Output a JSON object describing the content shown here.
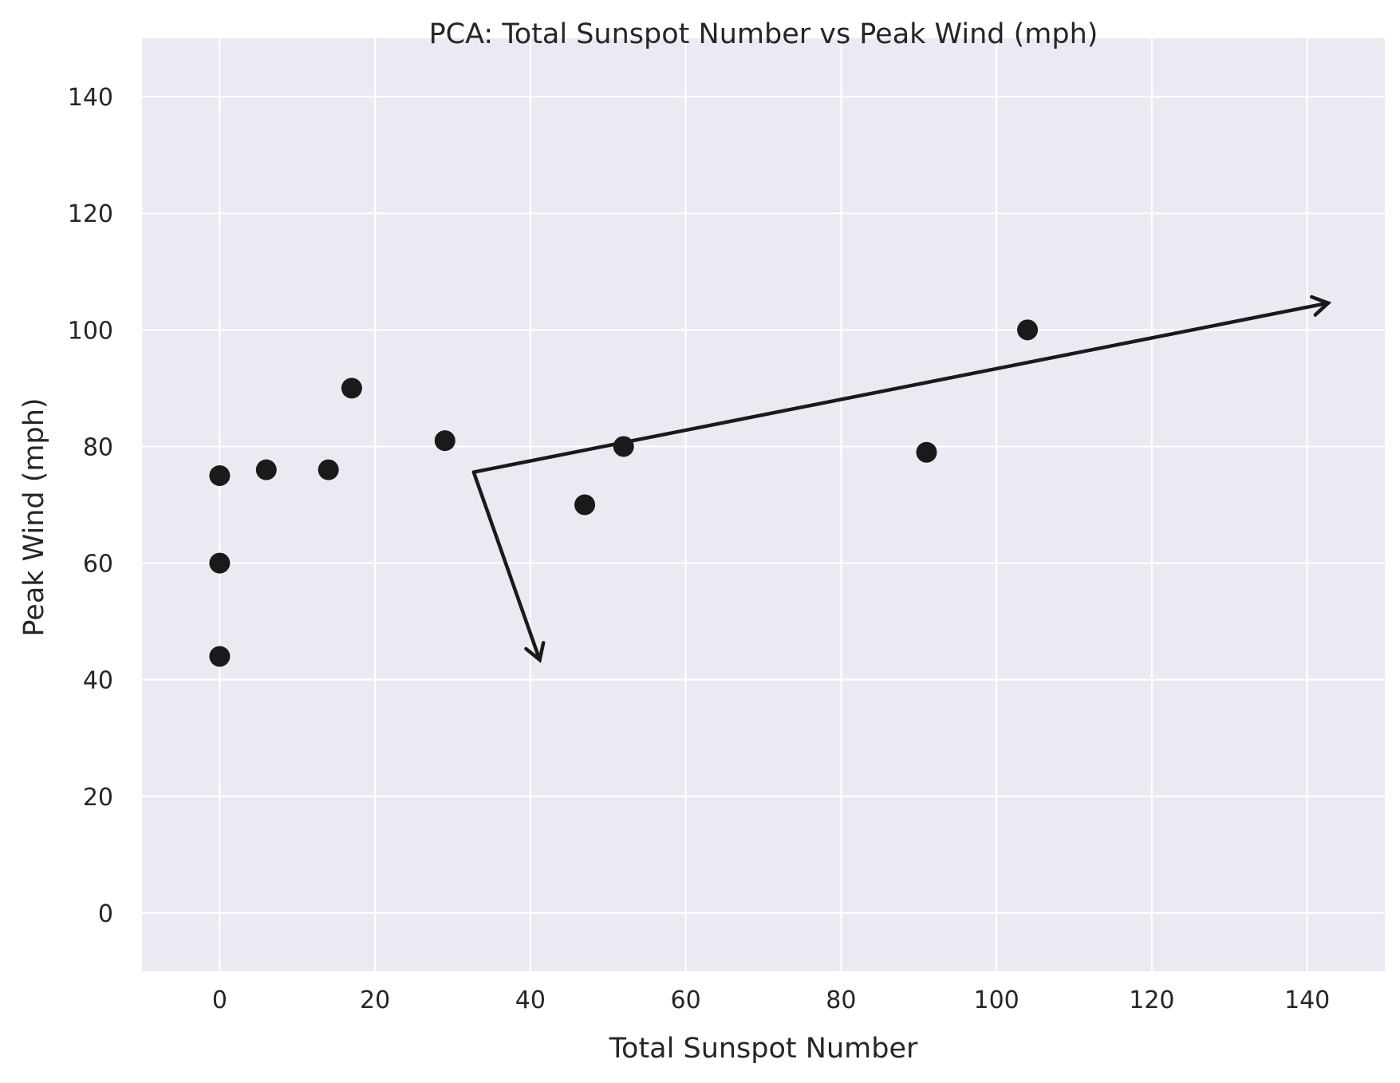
{
  "chart_data": {
    "type": "scatter",
    "title": "PCA: Total Sunspot Number vs Peak Wind (mph)",
    "xlabel": "Total Sunspot Number",
    "ylabel": "Peak Wind (mph)",
    "xlim": [
      -10,
      150
    ],
    "ylim": [
      -10,
      150
    ],
    "xticks": [
      0,
      20,
      40,
      60,
      80,
      100,
      120,
      140
    ],
    "yticks": [
      0,
      20,
      40,
      60,
      80,
      100,
      120,
      140
    ],
    "grid": true,
    "colors": {
      "background": "#eaeaf2",
      "grid": "#ffffff",
      "points": "#1a1a1a",
      "arrows": "#1a1a1a"
    },
    "points": [
      {
        "x": 0,
        "y": 75
      },
      {
        "x": 0,
        "y": 60
      },
      {
        "x": 0,
        "y": 44
      },
      {
        "x": 6,
        "y": 76
      },
      {
        "x": 14,
        "y": 76
      },
      {
        "x": 17,
        "y": 90
      },
      {
        "x": 29,
        "y": 81
      },
      {
        "x": 47,
        "y": 70
      },
      {
        "x": 52,
        "y": 80
      },
      {
        "x": 91,
        "y": 79
      },
      {
        "x": 104,
        "y": 100
      }
    ],
    "arrows": [
      {
        "x0": 32.7,
        "y0": 75.6,
        "x1": 142.7,
        "y1": 104.6
      },
      {
        "x0": 32.7,
        "y0": 75.6,
        "x1": 41.2,
        "y1": 43.4
      }
    ]
  }
}
